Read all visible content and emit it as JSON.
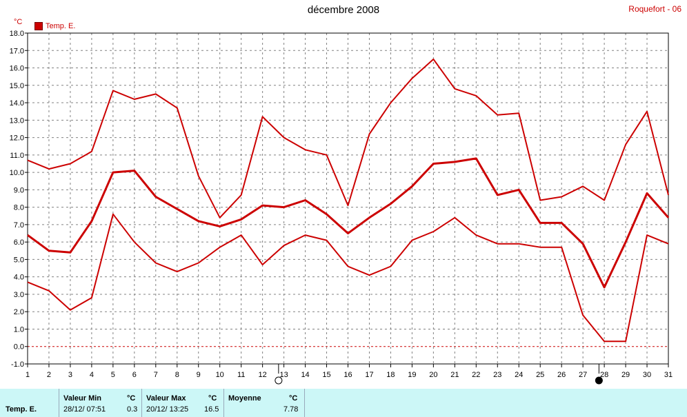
{
  "title": "décembre 2008",
  "location": "Roquefort - 06",
  "unit": "°C",
  "legend_label": "Temp. E.",
  "colors": {
    "series": "#cc0000",
    "grid": "#808080",
    "zero_line": "#cc0000",
    "stats_bg": "#ccf7f7"
  },
  "chart_data": {
    "type": "line",
    "x": [
      1,
      2,
      3,
      4,
      5,
      6,
      7,
      8,
      9,
      10,
      11,
      12,
      13,
      14,
      15,
      16,
      17,
      18,
      19,
      20,
      21,
      22,
      23,
      24,
      25,
      26,
      27,
      28,
      29,
      30,
      31
    ],
    "ylim": [
      -1.0,
      18.0
    ],
    "y_ticks": [
      "-1.0",
      "0.0",
      "1.0",
      "2.0",
      "3.0",
      "4.0",
      "5.0",
      "6.0",
      "7.0",
      "8.0",
      "9.0",
      "10.0",
      "11.0",
      "12.0",
      "13.0",
      "14.0",
      "15.0",
      "16.0",
      "17.0",
      "18.0"
    ],
    "grid": true,
    "legend": "top-left",
    "series": [
      {
        "role": "max",
        "values": [
          10.7,
          10.2,
          10.5,
          11.2,
          14.7,
          14.2,
          14.5,
          13.7,
          9.8,
          7.4,
          8.7,
          13.2,
          12.0,
          11.3,
          11.0,
          8.1,
          12.2,
          14.0,
          15.4,
          16.5,
          14.8,
          14.4,
          13.3,
          13.4,
          8.4,
          8.6,
          9.2,
          8.4,
          11.6,
          13.5,
          8.7
        ]
      },
      {
        "role": "mean",
        "values": [
          6.4,
          5.5,
          5.4,
          7.2,
          10.0,
          10.1,
          8.6,
          7.9,
          7.2,
          6.9,
          7.3,
          8.1,
          8.0,
          8.4,
          7.6,
          6.5,
          7.4,
          8.2,
          9.2,
          10.5,
          10.6,
          10.8,
          8.7,
          9.0,
          7.1,
          7.1,
          5.9,
          3.4,
          6.0,
          8.8,
          7.4
        ]
      },
      {
        "role": "min",
        "values": [
          3.7,
          3.2,
          2.1,
          2.8,
          7.6,
          6.0,
          4.8,
          4.3,
          4.8,
          5.7,
          6.4,
          4.7,
          5.8,
          6.4,
          6.1,
          4.6,
          4.1,
          4.6,
          6.1,
          6.6,
          7.4,
          6.4,
          5.9,
          5.9,
          5.7,
          5.7,
          1.8,
          0.3,
          0.3,
          6.4,
          5.9
        ]
      }
    ],
    "moon_markers": [
      {
        "day": 12.75,
        "phase": "full"
      },
      {
        "day": 27.75,
        "phase": "new"
      }
    ]
  },
  "stats": {
    "row_label": "Temp. E.",
    "min": {
      "header": "Valeur Min",
      "unit": "°C",
      "date": "28/12/  07:51",
      "value": "0.3"
    },
    "max": {
      "header": "Valeur Max",
      "unit": "°C",
      "date": "20/12/  13:25",
      "value": "16.5"
    },
    "avg": {
      "header": "Moyenne",
      "unit": "°C",
      "value": "7.78"
    }
  }
}
